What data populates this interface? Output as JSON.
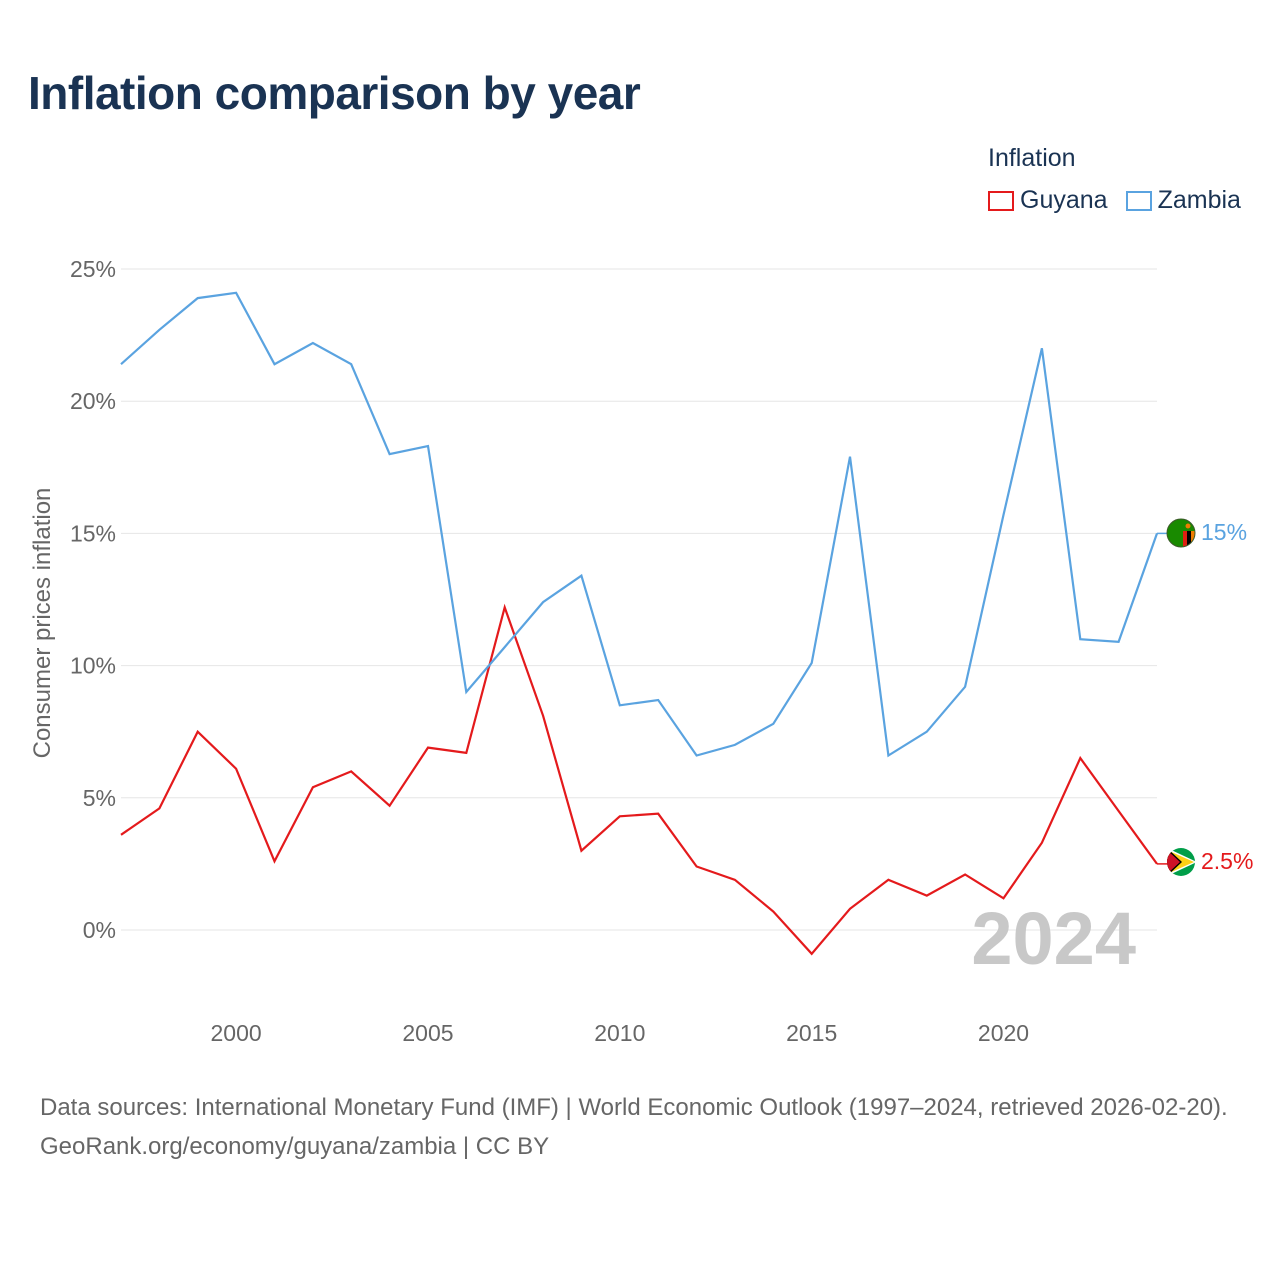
{
  "header": {
    "title": "Inflation comparison by year"
  },
  "legend": {
    "title": "Inflation",
    "items": [
      {
        "label": "Guyana",
        "color": "#e41a1c"
      },
      {
        "label": "Zambia",
        "color": "#5aa3e0"
      }
    ]
  },
  "watermark": {
    "year": "2024"
  },
  "end_labels": {
    "zambia": "15%",
    "guyana": "2.5%"
  },
  "flags": {
    "zambia": "zambia-flag-icon",
    "guyana": "guyana-flag-icon"
  },
  "footer": {
    "line1": "Data sources: International Monetary Fund (IMF) | World Economic Outlook (1997–2024, retrieved 2026-02-20).",
    "line2": "GeoRank.org/economy/guyana/zambia | CC BY"
  },
  "chart_data": {
    "type": "line",
    "title": "Inflation comparison by year",
    "xlabel": "",
    "ylabel": "Consumer prices inflation",
    "x": [
      1997,
      1998,
      1999,
      2000,
      2001,
      2002,
      2003,
      2004,
      2005,
      2006,
      2007,
      2008,
      2009,
      2010,
      2011,
      2012,
      2013,
      2014,
      2015,
      2016,
      2017,
      2018,
      2019,
      2020,
      2021,
      2022,
      2023,
      2024
    ],
    "xticks": [
      2000,
      2005,
      2010,
      2015,
      2020
    ],
    "xtick_labels": [
      "2000",
      "2005",
      "2010",
      "2015",
      "2020"
    ],
    "xlim": [
      1997,
      2024
    ],
    "yticks": [
      0,
      5,
      10,
      15,
      20,
      25
    ],
    "ytick_labels": [
      "0%",
      "5%",
      "10%",
      "15%",
      "20%",
      "25%"
    ],
    "ylim": [
      -2.5,
      26
    ],
    "grid": true,
    "legend_position": "top-right",
    "series": [
      {
        "name": "Guyana",
        "color": "#e41a1c",
        "values": [
          3.6,
          4.6,
          7.5,
          6.1,
          2.6,
          5.4,
          6.0,
          4.7,
          6.9,
          6.7,
          12.2,
          8.1,
          3.0,
          4.3,
          4.4,
          2.4,
          1.9,
          0.7,
          -0.9,
          0.8,
          1.9,
          1.3,
          2.1,
          1.2,
          3.3,
          6.5,
          4.5,
          2.5
        ]
      },
      {
        "name": "Zambia",
        "color": "#5aa3e0",
        "values": [
          21.4,
          22.7,
          23.9,
          24.1,
          21.4,
          22.2,
          21.4,
          18.0,
          18.3,
          9.0,
          10.7,
          12.4,
          13.4,
          8.5,
          8.7,
          6.6,
          7.0,
          7.8,
          10.1,
          17.9,
          6.6,
          7.5,
          9.2,
          15.7,
          22.0,
          11.0,
          10.9,
          15.0
        ]
      }
    ]
  }
}
